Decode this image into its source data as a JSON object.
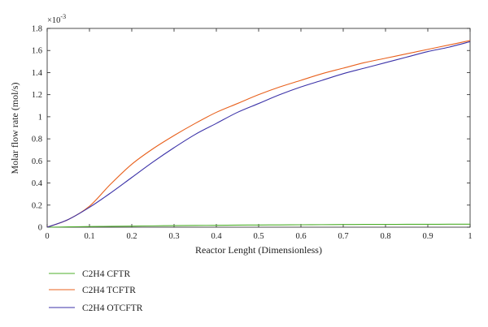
{
  "chart_data": {
    "type": "line",
    "xlabel": "Reactor Lenght (Dimensionless)",
    "ylabel": "Molar flow rate (mol/s)",
    "y_multiplier": "×10",
    "y_multiplier_exp": "-3",
    "xlim": [
      0,
      1
    ],
    "ylim": [
      0,
      1.8
    ],
    "xticks": [
      "0",
      "0.1",
      "0.2",
      "0.3",
      "0.4",
      "0.5",
      "0.6",
      "0.7",
      "0.8",
      "0.9",
      "1"
    ],
    "yticks": [
      "0",
      "0.2",
      "0.4",
      "0.6",
      "0.8",
      "1",
      "1.2",
      "1.4",
      "1.6",
      "1.8"
    ],
    "grid": false,
    "legend_position": "below-left",
    "x": [
      0,
      0.05,
      0.1,
      0.15,
      0.2,
      0.25,
      0.3,
      0.35,
      0.4,
      0.45,
      0.5,
      0.55,
      0.6,
      0.65,
      0.7,
      0.75,
      0.8,
      0.85,
      0.9,
      0.95,
      1.0
    ],
    "series": [
      {
        "name": "C2H4 CFTR",
        "color": "#4daf2a",
        "values": [
          0,
          0.003,
          0.006,
          0.008,
          0.01,
          0.012,
          0.014,
          0.016,
          0.017,
          0.019,
          0.02,
          0.021,
          0.022,
          0.023,
          0.024,
          0.025,
          0.025,
          0.026,
          0.026,
          0.027,
          0.027
        ]
      },
      {
        "name": "C2H4 TCFTR",
        "color": "#e8601c",
        "values": [
          0,
          0.07,
          0.19,
          0.39,
          0.57,
          0.71,
          0.83,
          0.94,
          1.04,
          1.12,
          1.2,
          1.27,
          1.33,
          1.39,
          1.44,
          1.49,
          1.53,
          1.57,
          1.61,
          1.65,
          1.69
        ]
      },
      {
        "name": "C2H4 OTCFTR",
        "color": "#3b32a8",
        "values": [
          0,
          0.07,
          0.18,
          0.31,
          0.45,
          0.59,
          0.72,
          0.84,
          0.94,
          1.04,
          1.12,
          1.2,
          1.27,
          1.33,
          1.39,
          1.44,
          1.49,
          1.54,
          1.59,
          1.63,
          1.68
        ]
      }
    ]
  }
}
